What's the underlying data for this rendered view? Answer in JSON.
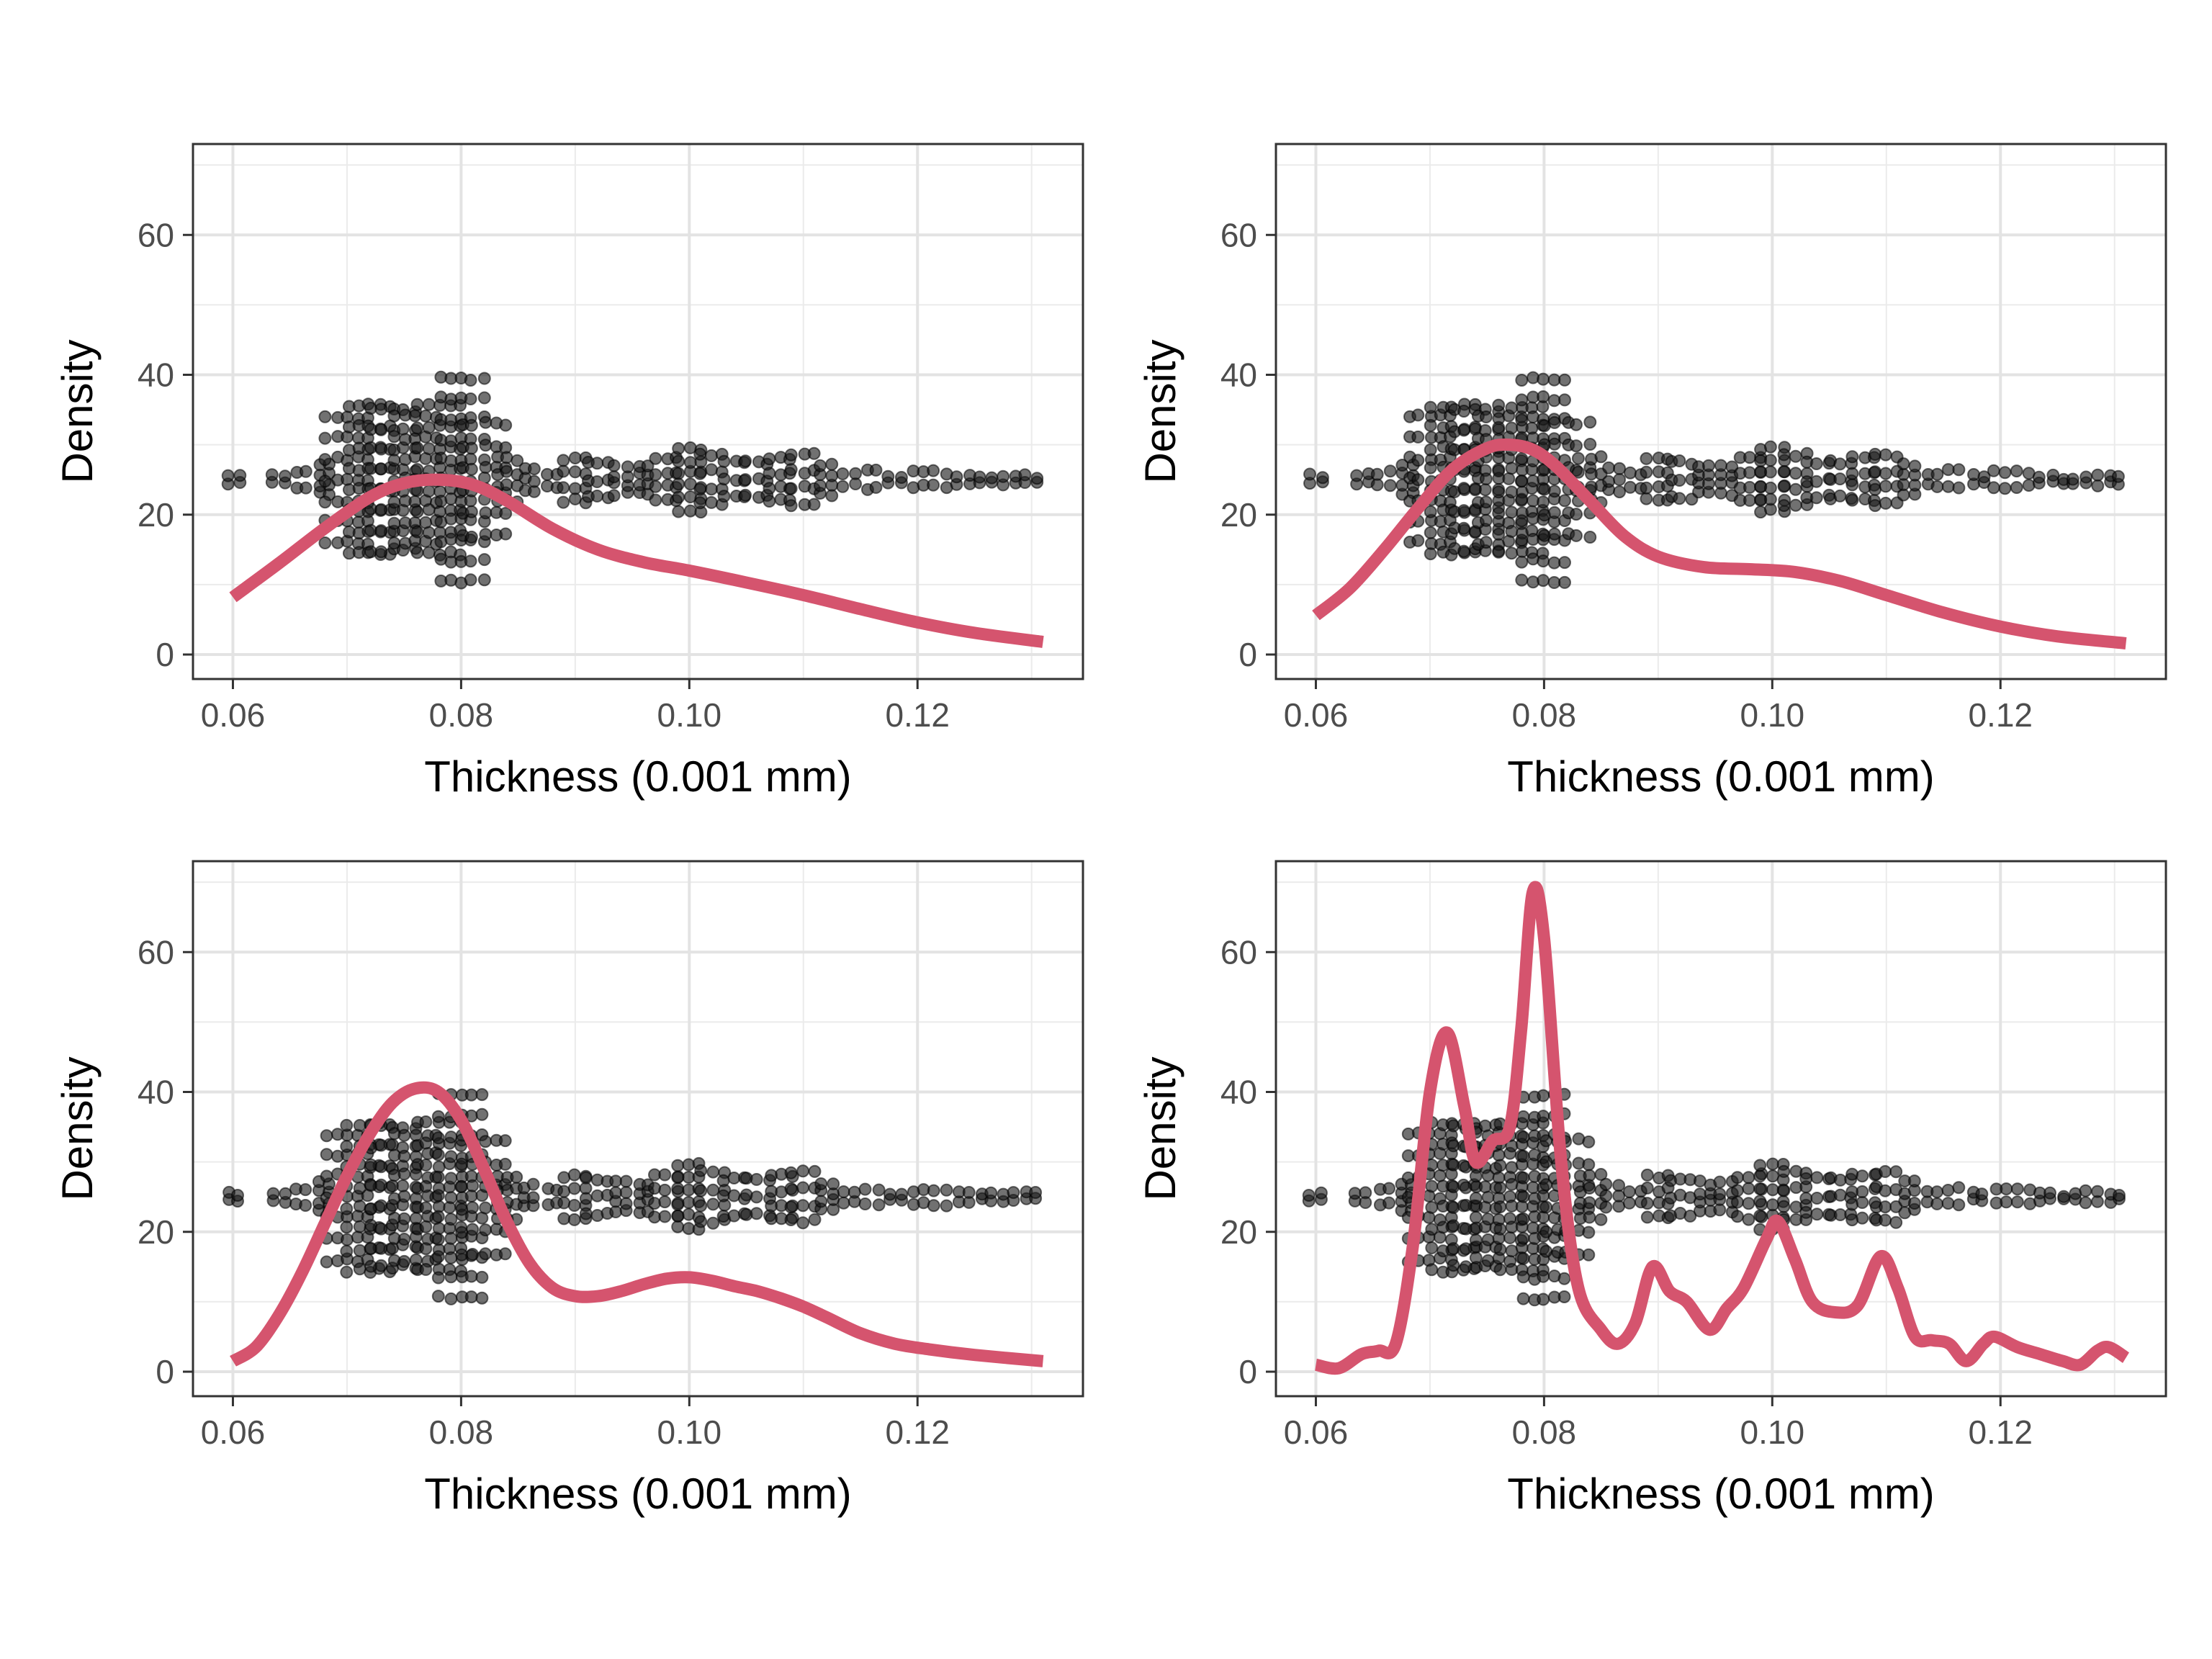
{
  "chart_data": [
    {
      "type": "line",
      "panel": "top-left",
      "xlabel": "Thickness (0.001 mm)",
      "ylabel": "Density",
      "xlim": [
        0.0565,
        0.1345
      ],
      "ylim": [
        -3.5,
        73
      ],
      "xticks": [
        0.06,
        0.08,
        0.1,
        0.12
      ],
      "xtick_labels": [
        "0.06",
        "0.08",
        "0.10",
        "0.12"
      ],
      "yticks": [
        0,
        20,
        40,
        60
      ],
      "ytick_labels": [
        "0",
        "20",
        "40",
        "60"
      ],
      "grid": true,
      "series": [
        {
          "kind": "density-curve",
          "color": "#D5546E",
          "x": [
            0.06,
            0.064,
            0.068,
            0.072,
            0.075,
            0.078,
            0.081,
            0.084,
            0.088,
            0.092,
            0.096,
            0.1,
            0.105,
            0.11,
            0.115,
            0.12,
            0.125,
            0.131
          ],
          "y": [
            8.2,
            13.0,
            18.0,
            22.5,
            24.5,
            25.0,
            24.3,
            22.0,
            18.0,
            15.0,
            13.2,
            12.0,
            10.3,
            8.5,
            6.5,
            4.6,
            3.1,
            1.8
          ]
        }
      ],
      "points": {
        "kind": "beeswarm",
        "color": "#1a1a1a",
        "center": 25,
        "groups": [
          {
            "x": 0.06,
            "spread": 0.5
          },
          {
            "x": 0.064,
            "spread": 0.6
          },
          {
            "x": 0.066,
            "spread": 1.0
          },
          {
            "x": 0.068,
            "spread": 2.0
          },
          {
            "x": 0.07,
            "spread": 9.0
          },
          {
            "x": 0.072,
            "spread": 10.5
          },
          {
            "x": 0.074,
            "spread": 10.0
          },
          {
            "x": 0.076,
            "spread": 9.0
          },
          {
            "x": 0.078,
            "spread": 10.5
          },
          {
            "x": 0.08,
            "spread": 14.5
          },
          {
            "x": 0.082,
            "spread": 8.0
          },
          {
            "x": 0.084,
            "spread": 3.0
          },
          {
            "x": 0.086,
            "spread": 1.5
          },
          {
            "x": 0.088,
            "spread": 1.0
          },
          {
            "x": 0.09,
            "spread": 3.0
          },
          {
            "x": 0.092,
            "spread": 2.5
          },
          {
            "x": 0.094,
            "spread": 2.0
          },
          {
            "x": 0.096,
            "spread": 2.0
          },
          {
            "x": 0.098,
            "spread": 3.0
          },
          {
            "x": 0.1,
            "spread": 4.5
          },
          {
            "x": 0.102,
            "spread": 3.5
          },
          {
            "x": 0.104,
            "spread": 2.5
          },
          {
            "x": 0.106,
            "spread": 2.5
          },
          {
            "x": 0.108,
            "spread": 3.0
          },
          {
            "x": 0.11,
            "spread": 3.5
          },
          {
            "x": 0.112,
            "spread": 2.0
          },
          {
            "x": 0.114,
            "spread": 0.8
          },
          {
            "x": 0.116,
            "spread": 1.2
          },
          {
            "x": 0.118,
            "spread": 0.5
          },
          {
            "x": 0.12,
            "spread": 1.0
          },
          {
            "x": 0.122,
            "spread": 1.0
          },
          {
            "x": 0.124,
            "spread": 0.5
          },
          {
            "x": 0.126,
            "spread": 0.3
          },
          {
            "x": 0.128,
            "spread": 0.6
          },
          {
            "x": 0.13,
            "spread": 0.5
          }
        ]
      }
    },
    {
      "type": "line",
      "panel": "top-right",
      "xlabel": "Thickness (0.001 mm)",
      "ylabel": "Density",
      "xlim": [
        0.0565,
        0.1345
      ],
      "ylim": [
        -3.5,
        73
      ],
      "xticks": [
        0.06,
        0.08,
        0.1,
        0.12
      ],
      "xtick_labels": [
        "0.06",
        "0.08",
        "0.10",
        "0.12"
      ],
      "yticks": [
        0,
        20,
        40,
        60
      ],
      "ytick_labels": [
        "0",
        "20",
        "40",
        "60"
      ],
      "grid": true,
      "series": [
        {
          "kind": "density-curve",
          "color": "#D5546E",
          "x": [
            0.06,
            0.063,
            0.066,
            0.069,
            0.072,
            0.075,
            0.077,
            0.079,
            0.081,
            0.084,
            0.087,
            0.09,
            0.094,
            0.098,
            0.102,
            0.106,
            0.11,
            0.115,
            0.12,
            0.125,
            0.131
          ],
          "y": [
            5.6,
            9.5,
            15.0,
            21.0,
            26.5,
            29.5,
            30.0,
            29.3,
            27.0,
            22.0,
            17.0,
            14.0,
            12.5,
            12.2,
            11.8,
            10.5,
            8.5,
            6.0,
            4.0,
            2.6,
            1.6
          ]
        }
      ],
      "points": {
        "kind": "beeswarm",
        "color": "#1a1a1a",
        "center": 25,
        "groups": [
          {
            "x": 0.06,
            "spread": 0.5
          },
          {
            "x": 0.064,
            "spread": 0.6
          },
          {
            "x": 0.066,
            "spread": 1.0
          },
          {
            "x": 0.068,
            "spread": 2.0
          },
          {
            "x": 0.07,
            "spread": 9.0
          },
          {
            "x": 0.072,
            "spread": 10.5
          },
          {
            "x": 0.074,
            "spread": 10.0
          },
          {
            "x": 0.076,
            "spread": 9.0
          },
          {
            "x": 0.078,
            "spread": 10.5
          },
          {
            "x": 0.08,
            "spread": 14.5
          },
          {
            "x": 0.082,
            "spread": 8.0
          },
          {
            "x": 0.084,
            "spread": 3.0
          },
          {
            "x": 0.086,
            "spread": 1.5
          },
          {
            "x": 0.088,
            "spread": 1.0
          },
          {
            "x": 0.09,
            "spread": 3.0
          },
          {
            "x": 0.092,
            "spread": 2.5
          },
          {
            "x": 0.094,
            "spread": 2.0
          },
          {
            "x": 0.096,
            "spread": 2.0
          },
          {
            "x": 0.098,
            "spread": 3.0
          },
          {
            "x": 0.1,
            "spread": 4.5
          },
          {
            "x": 0.102,
            "spread": 3.5
          },
          {
            "x": 0.104,
            "spread": 2.5
          },
          {
            "x": 0.106,
            "spread": 2.5
          },
          {
            "x": 0.108,
            "spread": 3.0
          },
          {
            "x": 0.11,
            "spread": 3.5
          },
          {
            "x": 0.112,
            "spread": 2.0
          },
          {
            "x": 0.114,
            "spread": 0.8
          },
          {
            "x": 0.116,
            "spread": 1.2
          },
          {
            "x": 0.118,
            "spread": 0.5
          },
          {
            "x": 0.12,
            "spread": 1.0
          },
          {
            "x": 0.122,
            "spread": 1.0
          },
          {
            "x": 0.124,
            "spread": 0.5
          },
          {
            "x": 0.126,
            "spread": 0.3
          },
          {
            "x": 0.128,
            "spread": 0.6
          },
          {
            "x": 0.13,
            "spread": 0.5
          }
        ]
      }
    },
    {
      "type": "line",
      "panel": "bottom-left",
      "xlabel": "Thickness (0.001 mm)",
      "ylabel": "Density",
      "xlim": [
        0.0565,
        0.1345
      ],
      "ylim": [
        -3.5,
        73
      ],
      "xticks": [
        0.06,
        0.08,
        0.1,
        0.12
      ],
      "xtick_labels": [
        "0.06",
        "0.08",
        "0.10",
        "0.12"
      ],
      "yticks": [
        0,
        20,
        40,
        60
      ],
      "ytick_labels": [
        "0",
        "20",
        "40",
        "60"
      ],
      "grid": true,
      "series": [
        {
          "kind": "density-curve",
          "color": "#D5546E",
          "x": [
            0.06,
            0.062,
            0.064,
            0.066,
            0.068,
            0.07,
            0.072,
            0.074,
            0.076,
            0.078,
            0.08,
            0.082,
            0.084,
            0.086,
            0.088,
            0.09,
            0.092,
            0.094,
            0.096,
            0.098,
            0.1,
            0.102,
            0.104,
            0.106,
            0.108,
            0.11,
            0.112,
            0.115,
            0.118,
            0.121,
            0.125,
            0.131
          ],
          "y": [
            1.5,
            3.5,
            8.0,
            14.0,
            21.0,
            28.0,
            34.0,
            38.5,
            40.5,
            40.0,
            36.0,
            29.0,
            21.5,
            15.5,
            12.0,
            10.8,
            10.8,
            11.5,
            12.5,
            13.3,
            13.5,
            13.0,
            12.2,
            11.5,
            10.5,
            9.3,
            7.8,
            5.5,
            4.0,
            3.2,
            2.4,
            1.5
          ]
        }
      ],
      "points": {
        "kind": "beeswarm",
        "color": "#1a1a1a",
        "center": 25,
        "groups": [
          {
            "x": 0.06,
            "spread": 0.5
          },
          {
            "x": 0.064,
            "spread": 0.6
          },
          {
            "x": 0.066,
            "spread": 1.0
          },
          {
            "x": 0.068,
            "spread": 2.0
          },
          {
            "x": 0.07,
            "spread": 9.0
          },
          {
            "x": 0.072,
            "spread": 10.5
          },
          {
            "x": 0.074,
            "spread": 10.0
          },
          {
            "x": 0.076,
            "spread": 9.0
          },
          {
            "x": 0.078,
            "spread": 10.5
          },
          {
            "x": 0.08,
            "spread": 14.5
          },
          {
            "x": 0.082,
            "spread": 8.0
          },
          {
            "x": 0.084,
            "spread": 3.0
          },
          {
            "x": 0.086,
            "spread": 1.5
          },
          {
            "x": 0.088,
            "spread": 1.0
          },
          {
            "x": 0.09,
            "spread": 3.0
          },
          {
            "x": 0.092,
            "spread": 2.5
          },
          {
            "x": 0.094,
            "spread": 2.0
          },
          {
            "x": 0.096,
            "spread": 2.0
          },
          {
            "x": 0.098,
            "spread": 3.0
          },
          {
            "x": 0.1,
            "spread": 4.5
          },
          {
            "x": 0.102,
            "spread": 3.5
          },
          {
            "x": 0.104,
            "spread": 2.5
          },
          {
            "x": 0.106,
            "spread": 2.5
          },
          {
            "x": 0.108,
            "spread": 3.0
          },
          {
            "x": 0.11,
            "spread": 3.5
          },
          {
            "x": 0.112,
            "spread": 2.0
          },
          {
            "x": 0.114,
            "spread": 0.8
          },
          {
            "x": 0.116,
            "spread": 1.2
          },
          {
            "x": 0.118,
            "spread": 0.5
          },
          {
            "x": 0.12,
            "spread": 1.0
          },
          {
            "x": 0.122,
            "spread": 1.0
          },
          {
            "x": 0.124,
            "spread": 0.5
          },
          {
            "x": 0.126,
            "spread": 0.3
          },
          {
            "x": 0.128,
            "spread": 0.6
          },
          {
            "x": 0.13,
            "spread": 0.5
          }
        ]
      }
    },
    {
      "type": "line",
      "panel": "bottom-right",
      "xlabel": "Thickness (0.001 mm)",
      "ylabel": "Density",
      "xlim": [
        0.0565,
        0.1345
      ],
      "ylim": [
        -3.5,
        73
      ],
      "xticks": [
        0.06,
        0.08,
        0.1,
        0.12
      ],
      "xtick_labels": [
        "0.06",
        "0.08",
        "0.10",
        "0.12"
      ],
      "yticks": [
        0,
        20,
        40,
        60
      ],
      "ytick_labels": [
        "0",
        "20",
        "40",
        "60"
      ],
      "grid": true,
      "series": [
        {
          "kind": "density-curve",
          "color": "#D5546E",
          "x": [
            0.06,
            0.062,
            0.064,
            0.0655,
            0.067,
            0.0685,
            0.07,
            0.0715,
            0.073,
            0.074,
            0.0755,
            0.077,
            0.078,
            0.079,
            0.08,
            0.0815,
            0.083,
            0.085,
            0.0865,
            0.088,
            0.0895,
            0.091,
            0.0925,
            0.0945,
            0.096,
            0.0975,
            0.0995,
            0.1005,
            0.102,
            0.1035,
            0.1055,
            0.1075,
            0.1095,
            0.111,
            0.1125,
            0.114,
            0.1155,
            0.117,
            0.1185,
            0.1195,
            0.1215,
            0.1235,
            0.1255,
            0.127,
            0.1285,
            0.1295,
            0.131
          ],
          "y": [
            1.0,
            0.5,
            2.5,
            3.0,
            4.0,
            18.0,
            40.0,
            48.5,
            38.0,
            30.0,
            33.0,
            35.0,
            49.0,
            68.5,
            62.0,
            30.0,
            12.0,
            6.0,
            4.0,
            7.0,
            15.0,
            11.5,
            10.0,
            6.0,
            9.0,
            12.0,
            19.0,
            21.5,
            16.0,
            10.0,
            8.5,
            9.5,
            16.5,
            12.0,
            5.0,
            4.5,
            4.0,
            1.5,
            4.0,
            5.0,
            3.5,
            2.5,
            1.5,
            1.0,
            3.0,
            3.5,
            2.0
          ]
        }
      ],
      "points": {
        "kind": "beeswarm",
        "color": "#1a1a1a",
        "center": 25,
        "groups": [
          {
            "x": 0.06,
            "spread": 0.5
          },
          {
            "x": 0.064,
            "spread": 0.6
          },
          {
            "x": 0.066,
            "spread": 1.0
          },
          {
            "x": 0.068,
            "spread": 2.0
          },
          {
            "x": 0.07,
            "spread": 9.0
          },
          {
            "x": 0.072,
            "spread": 10.5
          },
          {
            "x": 0.074,
            "spread": 10.0
          },
          {
            "x": 0.076,
            "spread": 9.0
          },
          {
            "x": 0.078,
            "spread": 10.5
          },
          {
            "x": 0.08,
            "spread": 14.5
          },
          {
            "x": 0.082,
            "spread": 8.0
          },
          {
            "x": 0.084,
            "spread": 3.0
          },
          {
            "x": 0.086,
            "spread": 1.5
          },
          {
            "x": 0.088,
            "spread": 1.0
          },
          {
            "x": 0.09,
            "spread": 3.0
          },
          {
            "x": 0.092,
            "spread": 2.5
          },
          {
            "x": 0.094,
            "spread": 2.0
          },
          {
            "x": 0.096,
            "spread": 2.0
          },
          {
            "x": 0.098,
            "spread": 3.0
          },
          {
            "x": 0.1,
            "spread": 4.5
          },
          {
            "x": 0.102,
            "spread": 3.5
          },
          {
            "x": 0.104,
            "spread": 2.5
          },
          {
            "x": 0.106,
            "spread": 2.5
          },
          {
            "x": 0.108,
            "spread": 3.0
          },
          {
            "x": 0.11,
            "spread": 3.5
          },
          {
            "x": 0.112,
            "spread": 2.0
          },
          {
            "x": 0.114,
            "spread": 0.8
          },
          {
            "x": 0.116,
            "spread": 1.2
          },
          {
            "x": 0.118,
            "spread": 0.5
          },
          {
            "x": 0.12,
            "spread": 1.0
          },
          {
            "x": 0.122,
            "spread": 1.0
          },
          {
            "x": 0.124,
            "spread": 0.5
          },
          {
            "x": 0.126,
            "spread": 0.3
          },
          {
            "x": 0.128,
            "spread": 0.6
          },
          {
            "x": 0.13,
            "spread": 0.5
          }
        ]
      }
    }
  ]
}
